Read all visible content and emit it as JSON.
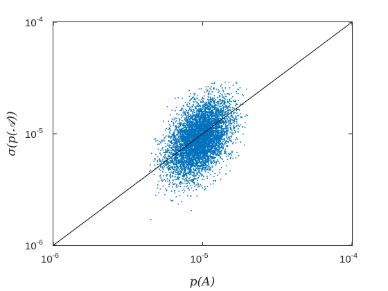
{
  "chart_data": {
    "type": "scatter",
    "xscale": "log",
    "yscale": "log",
    "xlim": [
      1e-06,
      0.0001
    ],
    "ylim": [
      1e-06,
      0.0001
    ],
    "grid": false,
    "xlabel": "p(A)",
    "ylabel": "σ(p(𝒜))",
    "x_ticks": [
      {
        "value": 1e-06,
        "base": "10",
        "exponent": "-6"
      },
      {
        "value": 1e-05,
        "base": "10",
        "exponent": "-5"
      },
      {
        "value": 0.0001,
        "base": "10",
        "exponent": "-4"
      }
    ],
    "y_ticks": [
      {
        "value": 1e-06,
        "base": "10",
        "exponent": "-6"
      },
      {
        "value": 1e-05,
        "base": "10",
        "exponent": "-5"
      },
      {
        "value": 0.0001,
        "base": "10",
        "exponent": "-4"
      }
    ],
    "marker_color": "#0072BD",
    "reference_line": {
      "x": [
        1e-06,
        0.0001
      ],
      "y": [
        1e-06,
        0.0001
      ],
      "color": "#000000"
    },
    "cloud": {
      "center": {
        "x": 9.5e-06,
        "y": 9e-06
      },
      "x_range": [
        4.4e-06,
        2e-05
      ],
      "y_range": [
        1.7e-06,
        2.9e-05
      ],
      "y_cap": 2.9e-05,
      "approx_points": 6000
    },
    "outliers": [
      {
        "x": 4.5e-06,
        "y": 1.7e-06
      },
      {
        "x": 4.4e-06,
        "y": 4.6e-06
      },
      {
        "x": 5.2e-06,
        "y": 3.2e-06
      },
      {
        "x": 6.2e-06,
        "y": 2.5e-06
      },
      {
        "x": 4.8e-06,
        "y": 6e-06
      },
      {
        "x": 1.8e-05,
        "y": 1.2e-05
      },
      {
        "x": 2e-05,
        "y": 1.45e-05
      }
    ]
  }
}
